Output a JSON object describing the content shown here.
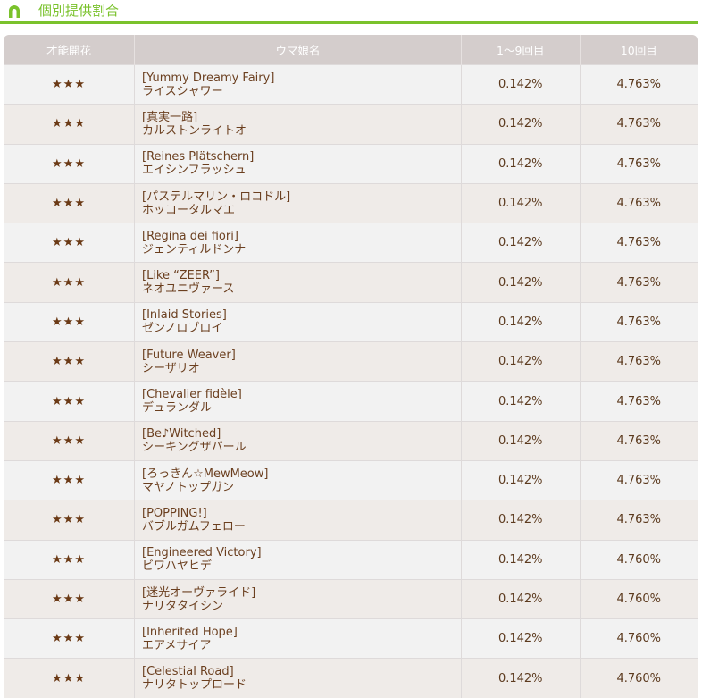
{
  "section": {
    "title": "個別提供割合",
    "accent": "#7ac22c",
    "icon": "horseshoe-icon"
  },
  "table": {
    "headers": [
      "才能開花",
      "ウマ娘名",
      "1〜9回目",
      "10回目"
    ],
    "rows": [
      {
        "rarity": "★★★",
        "outfit": "[Yummy Dreamy Fairy]",
        "name": "ライスシャワー",
        "rate1_9": "0.142%",
        "rate10": "4.763%"
      },
      {
        "rarity": "★★★",
        "outfit": "[真実一路]",
        "name": "カルストンライトオ",
        "rate1_9": "0.142%",
        "rate10": "4.763%"
      },
      {
        "rarity": "★★★",
        "outfit": "[Reines Plätschern]",
        "name": "エイシンフラッシュ",
        "rate1_9": "0.142%",
        "rate10": "4.763%"
      },
      {
        "rarity": "★★★",
        "outfit": "[パステルマリン・ロコドル]",
        "name": "ホッコータルマエ",
        "rate1_9": "0.142%",
        "rate10": "4.763%"
      },
      {
        "rarity": "★★★",
        "outfit": "[Regina dei fiori]",
        "name": "ジェンティルドンナ",
        "rate1_9": "0.142%",
        "rate10": "4.763%"
      },
      {
        "rarity": "★★★",
        "outfit": "[Like “ZEER”]",
        "name": "ネオユニヴァース",
        "rate1_9": "0.142%",
        "rate10": "4.763%"
      },
      {
        "rarity": "★★★",
        "outfit": "[Inlaid Stories]",
        "name": "ゼンノロブロイ",
        "rate1_9": "0.142%",
        "rate10": "4.763%"
      },
      {
        "rarity": "★★★",
        "outfit": "[Future Weaver]",
        "name": "シーザリオ",
        "rate1_9": "0.142%",
        "rate10": "4.763%"
      },
      {
        "rarity": "★★★",
        "outfit": "[Chevalier fidèle]",
        "name": "デュランダル",
        "rate1_9": "0.142%",
        "rate10": "4.763%"
      },
      {
        "rarity": "★★★",
        "outfit": "[Be♪Witched]",
        "name": "シーキングザパール",
        "rate1_9": "0.142%",
        "rate10": "4.763%"
      },
      {
        "rarity": "★★★",
        "outfit": "[ろっきん☆MewMeow]",
        "name": "マヤノトップガン",
        "rate1_9": "0.142%",
        "rate10": "4.763%"
      },
      {
        "rarity": "★★★",
        "outfit": "[POPPING!]",
        "name": "バブルガムフェロー",
        "rate1_9": "0.142%",
        "rate10": "4.763%"
      },
      {
        "rarity": "★★★",
        "outfit": "[Engineered Victory]",
        "name": "ビワハヤヒデ",
        "rate1_9": "0.142%",
        "rate10": "4.760%"
      },
      {
        "rarity": "★★★",
        "outfit": "[迷光オーヴァライド]",
        "name": "ナリタタイシン",
        "rate1_9": "0.142%",
        "rate10": "4.760%"
      },
      {
        "rarity": "★★★",
        "outfit": "[Inherited Hope]",
        "name": "エアメサイア",
        "rate1_9": "0.142%",
        "rate10": "4.760%"
      },
      {
        "rarity": "★★★",
        "outfit": "[Celestial Road]",
        "name": "ナリタトップロード",
        "rate1_9": "0.142%",
        "rate10": "4.760%"
      }
    ]
  }
}
